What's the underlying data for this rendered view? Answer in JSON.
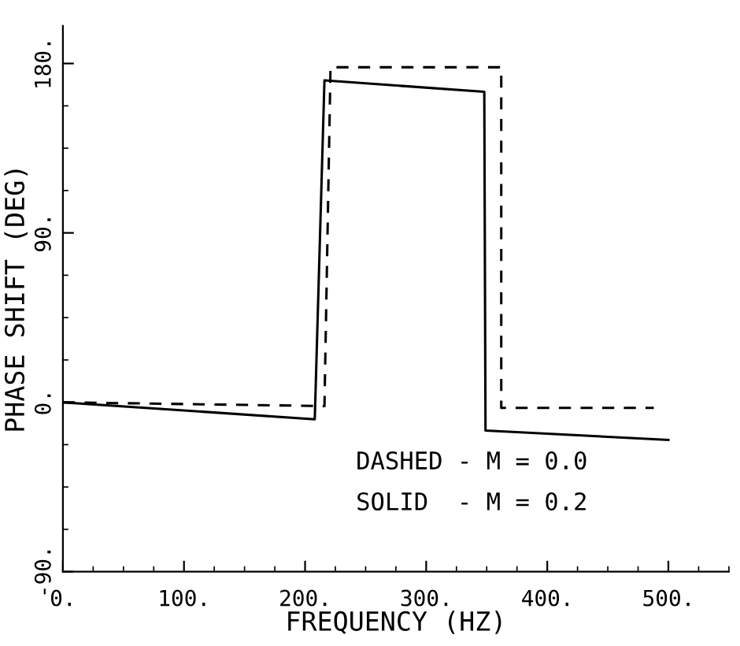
{
  "chart_data": {
    "type": "line",
    "xlabel": "FREQUENCY (HZ)",
    "ylabel": "PHASE SHIFT (DEG)",
    "xlim": [
      0,
      550
    ],
    "ylim": [
      -90,
      200
    ],
    "xticks": [
      {
        "value": 0,
        "label": "0."
      },
      {
        "value": 100,
        "label": "100."
      },
      {
        "value": 200,
        "label": "200."
      },
      {
        "value": 300,
        "label": "300."
      },
      {
        "value": 400,
        "label": "400."
      },
      {
        "value": 500,
        "label": "500."
      }
    ],
    "yticks": [
      {
        "value": -90,
        "label": "-90."
      },
      {
        "value": 0,
        "label": "0."
      },
      {
        "value": 90,
        "label": "90."
      },
      {
        "value": 180,
        "label": "180."
      }
    ],
    "grid": false,
    "legend": false,
    "marker": "none",
    "series": [
      {
        "color": "#000000",
        "line_style": "dashed",
        "x": [
          0,
          216,
          221,
          362,
          362,
          488
        ],
        "values": [
          0,
          -2,
          178,
          178,
          -3,
          -3
        ]
      },
      {
        "color": "#000000",
        "line_style": "solid",
        "x": [
          0,
          208,
          216,
          348,
          349,
          500
        ],
        "values": [
          0,
          -9,
          171,
          165,
          -15,
          -20
        ]
      }
    ],
    "annotations": [
      "DASHED - M = 0.0",
      "SOLID  - M = 0.2"
    ]
  }
}
